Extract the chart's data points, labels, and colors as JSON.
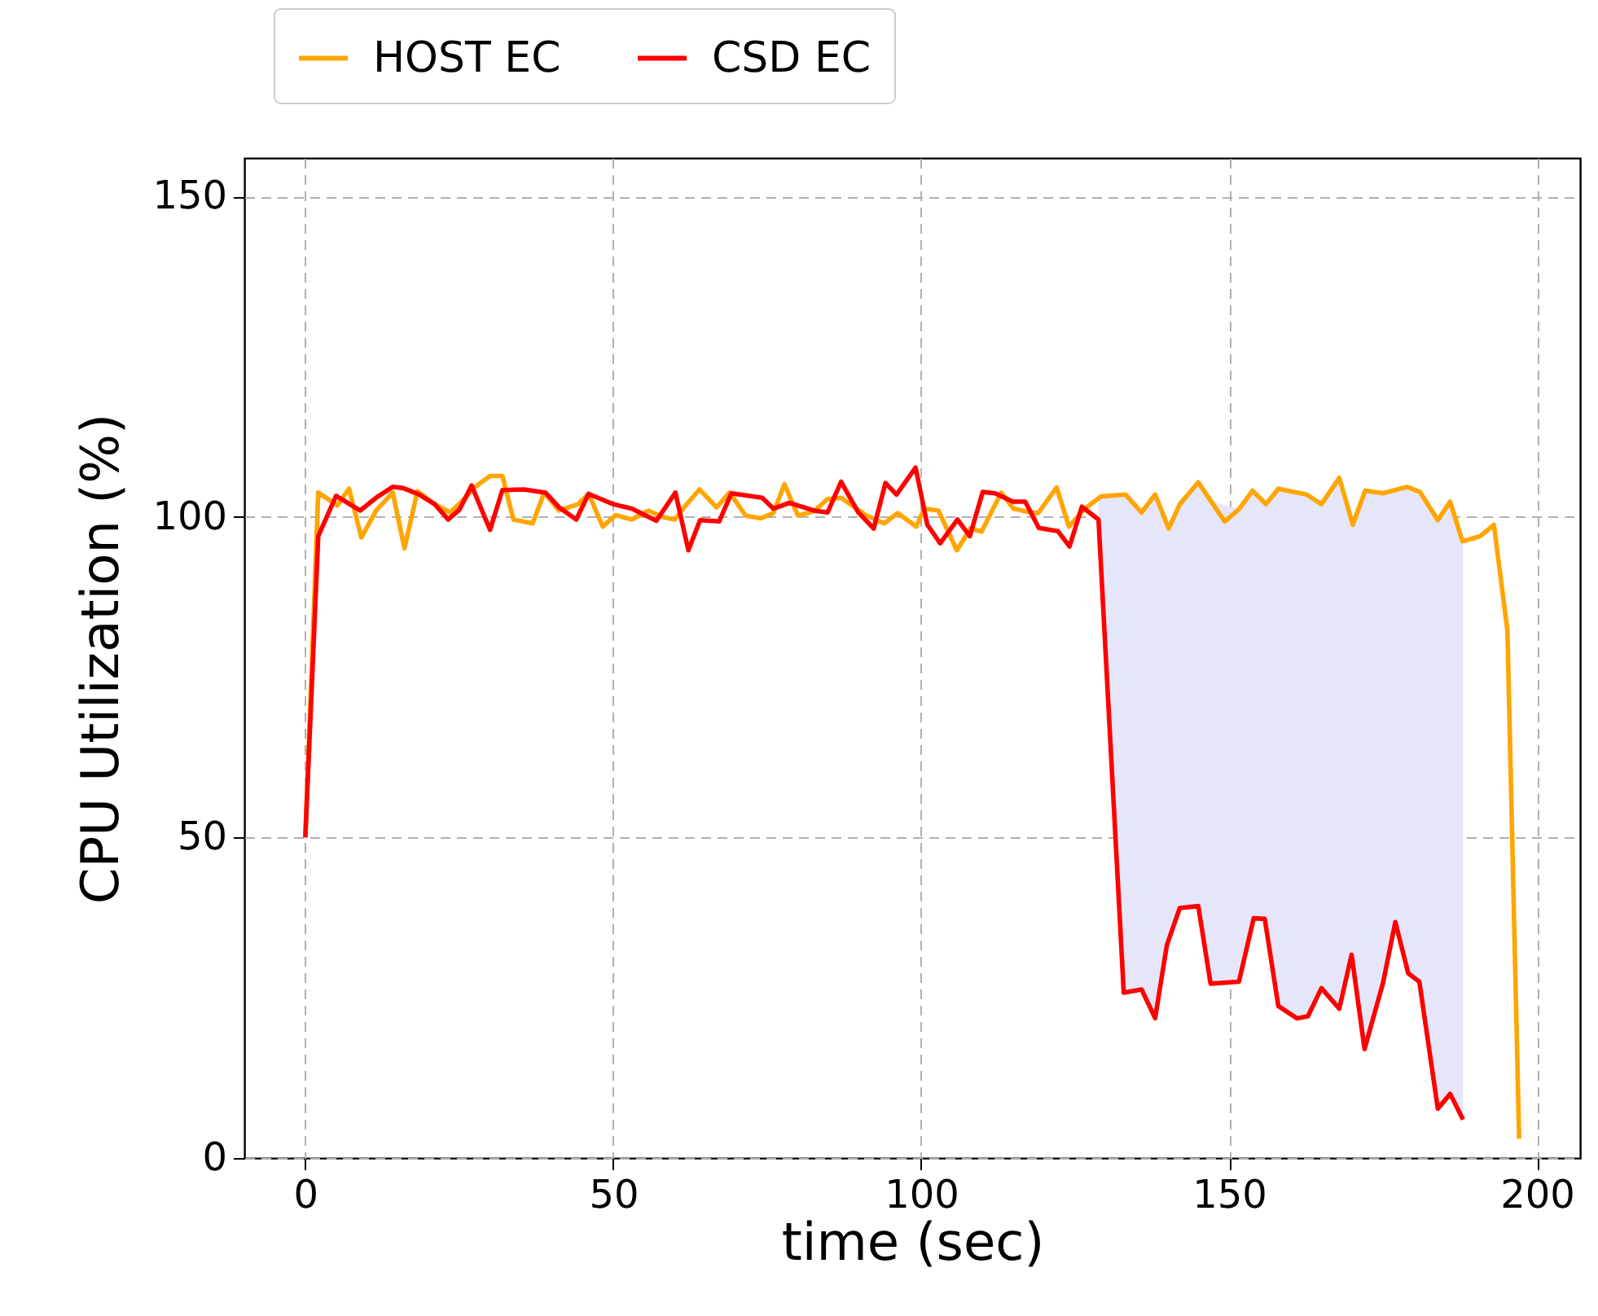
{
  "chart_data": {
    "type": "line",
    "xlabel": "time (sec)",
    "ylabel": "CPU Utilization (%)",
    "xlim": [
      -9.9,
      207
    ],
    "ylim": [
      0,
      156
    ],
    "xticks": [
      0,
      50,
      100,
      150,
      200
    ],
    "yticks": [
      0,
      50,
      100,
      150
    ],
    "grid": true,
    "legend": "top",
    "marker": "none",
    "line_style": "solid",
    "series": [
      {
        "name": "HOST EC",
        "color": "#ffa500",
        "x": [
          0,
          2.1,
          5.2,
          7.1,
          9.1,
          11.5,
          14.2,
          16.1,
          18.2,
          21,
          23.5,
          25.5,
          27.6,
          30,
          32,
          33.8,
          36.9,
          38.8,
          41.2,
          44.3,
          46,
          48.3,
          50.4,
          53,
          55.7,
          58,
          60,
          61.5,
          64,
          66.8,
          68.9,
          71.5,
          74,
          76,
          77.8,
          80,
          82.6,
          84.8,
          87,
          91,
          94,
          96.2,
          99.2,
          100.5,
          102.8,
          105.8,
          108,
          109.8,
          113,
          115,
          117.3,
          119,
          122,
          124,
          126.6,
          129.2,
          133.2,
          135.8,
          138,
          140.2,
          142,
          145,
          149.3,
          151.6,
          153.8,
          156,
          158,
          162.6,
          165,
          167.9,
          170.1,
          172.1,
          175,
          178.9,
          181,
          183.9,
          185.9,
          187.9,
          190.8,
          193,
          195.2,
          197.1
        ],
        "values": [
          50,
          103.8,
          101.8,
          104.4,
          96.8,
          101,
          103.8,
          95.1,
          104,
          102,
          100.7,
          102.5,
          104.7,
          106.4,
          106.4,
          99.6,
          99,
          103.8,
          101,
          102,
          103.6,
          98.5,
          100.3,
          99.6,
          101,
          100,
          99.6,
          101.5,
          104.3,
          101.5,
          103.8,
          100.2,
          99.8,
          100.6,
          105.1,
          100.2,
          100.9,
          102.8,
          103,
          100.3,
          99,
          100.6,
          98.5,
          101.3,
          101,
          94.8,
          98.2,
          97.7,
          103.8,
          101.3,
          100.8,
          100.6,
          104.6,
          98.5,
          101.3,
          103.2,
          103.5,
          100.7,
          103.5,
          98.2,
          102,
          105.4,
          99.3,
          101.2,
          104.1,
          102,
          104.4,
          103.5,
          102,
          106.1,
          98.8,
          104.1,
          103.7,
          104.7,
          103.9,
          99.5,
          102.4,
          96.2,
          97,
          98.8,
          82.3,
          3
        ]
      },
      {
        "name": "CSD EC",
        "color": "#ff0000",
        "x": [
          0,
          2.1,
          5,
          8.9,
          11.5,
          14.2,
          15.9,
          18.5,
          21,
          23.2,
          25,
          27,
          30,
          32,
          35.5,
          39,
          41.2,
          44,
          46,
          50,
          53,
          57,
          60.1,
          62.2,
          64.1,
          67.2,
          69.2,
          74.2,
          76,
          78.6,
          82.6,
          84.8,
          87,
          89.8,
          92.3,
          94.2,
          96,
          99.1,
          101,
          103.1,
          105.9,
          107.9,
          110,
          112,
          114.9,
          116.9,
          119.1,
          122.2,
          124.1,
          126.1,
          128.8,
          132.9,
          135.8,
          138,
          139.9,
          142,
          145,
          147,
          151.6,
          154,
          155.8,
          158,
          161,
          162.8,
          165,
          167.9,
          169.9,
          172,
          175,
          177,
          179.1,
          180.9,
          183.9,
          185.9,
          188
        ],
        "values": [
          50,
          97,
          103.3,
          101,
          103,
          104.7,
          104.5,
          103.5,
          102,
          99.6,
          101.1,
          104.9,
          98,
          104.2,
          104.3,
          103.8,
          101.5,
          99.6,
          103.6,
          102,
          101.3,
          99.4,
          103.8,
          94.8,
          99.5,
          99.3,
          103.7,
          103,
          101.3,
          102.2,
          101,
          100.7,
          105.5,
          100.7,
          98.2,
          105.3,
          103.5,
          107.7,
          98.8,
          95.9,
          99.6,
          97,
          103.9,
          103.7,
          102.4,
          102.4,
          98.3,
          97.8,
          95.4,
          101.6,
          99.6,
          25.8,
          26.3,
          21.8,
          33.2,
          39,
          39.3,
          27.2,
          27.5,
          37.4,
          37.3,
          23.7,
          21.8,
          22.1,
          26.5,
          23.3,
          31.7,
          17,
          27.3,
          36.8,
          28.8,
          27.5,
          7.7,
          10,
          6
        ],
        "lower": [
          null,
          null,
          null,
          null,
          null,
          null,
          null,
          null,
          null,
          null,
          null,
          null,
          null,
          null,
          null,
          null,
          null,
          null,
          null,
          null,
          null,
          null,
          null,
          null,
          null,
          null,
          null,
          null,
          null,
          null,
          null,
          null,
          null,
          null,
          null,
          null,
          null,
          null,
          null,
          null,
          null,
          null,
          null,
          null,
          null,
          null,
          null,
          null,
          null,
          null,
          99.6,
          25.8,
          26.3,
          21.8,
          33.2,
          39,
          39.3,
          27.2,
          27.5,
          37.4,
          37.3,
          23.7,
          21.8,
          22.1,
          26.5,
          23.3,
          31.7,
          17,
          27.3,
          36.8,
          28.8,
          27.5,
          7.7,
          10,
          6
        ],
        "upper": [
          null,
          null,
          null,
          null,
          null,
          null,
          null,
          null,
          null,
          null,
          null,
          null,
          null,
          null,
          null,
          null,
          null,
          null,
          null,
          null,
          null,
          null,
          null,
          null,
          null,
          null,
          null,
          null,
          null,
          null,
          null,
          null,
          null,
          null,
          null,
          null,
          null,
          null,
          null,
          null,
          null,
          null,
          null,
          null,
          null,
          null,
          null,
          null,
          null,
          null,
          103.2,
          103.5,
          100.7,
          103.5,
          98.5,
          102,
          105.4,
          102.5,
          101.2,
          104.1,
          102,
          104.4,
          104,
          103.5,
          102,
          106.1,
          98.8,
          104.1,
          103.7,
          104.5,
          104.7,
          103.9,
          99.5,
          102.4,
          96.2
        ]
      }
    ]
  }
}
